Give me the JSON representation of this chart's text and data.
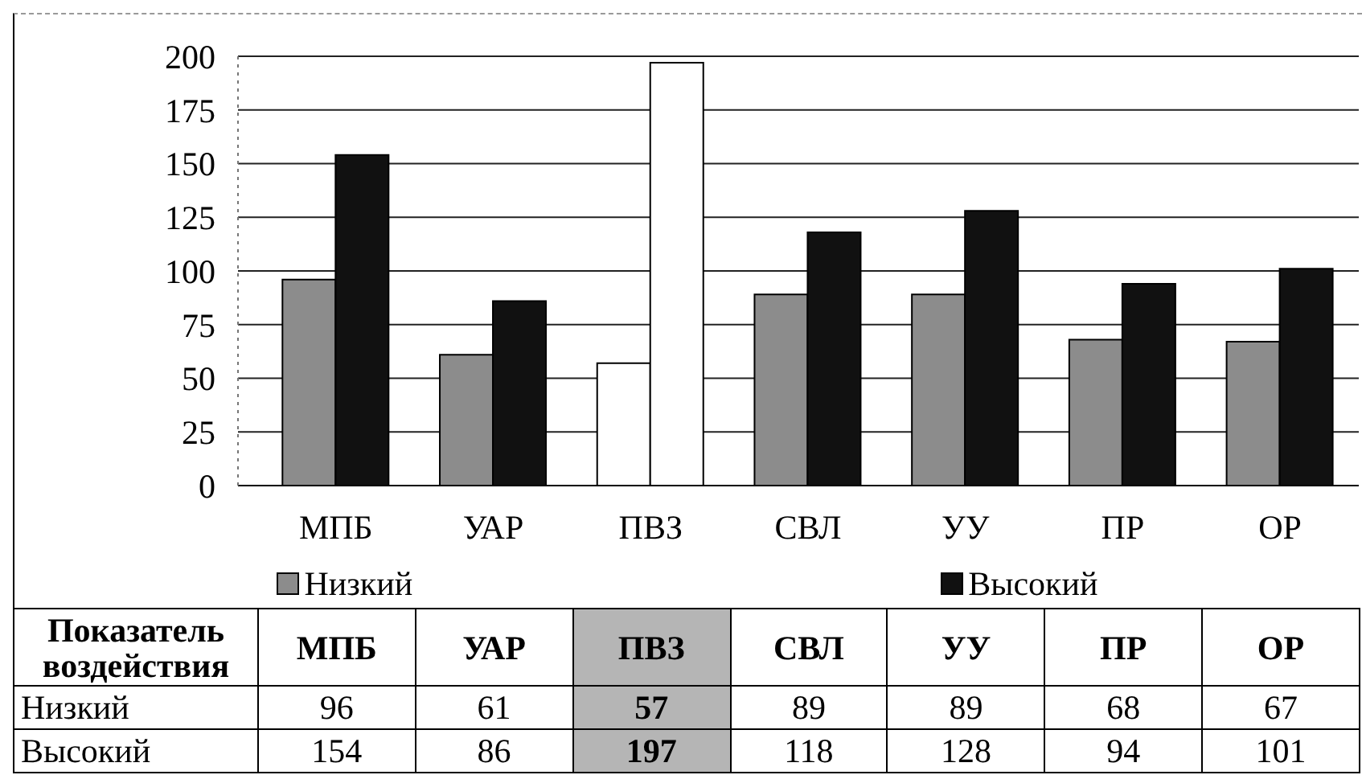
{
  "chart_data": {
    "type": "bar",
    "xlabel": "Показатель воздействия",
    "categories": [
      "МПБ",
      "УАР",
      "ПВЗ",
      "СВЛ",
      "УУ",
      "ПР",
      "ОР"
    ],
    "series": [
      {
        "name": "Низкий",
        "color": "#8c8c8c",
        "colors": [
          "#8c8c8c",
          "#8c8c8c",
          "#ffffff",
          "#8c8c8c",
          "#8c8c8c",
          "#8c8c8c",
          "#8c8c8c"
        ],
        "values": [
          96,
          61,
          57,
          89,
          89,
          68,
          67
        ]
      },
      {
        "name": "Высокий",
        "color": "#111111",
        "colors": [
          "#111111",
          "#111111",
          "#ffffff",
          "#111111",
          "#111111",
          "#111111",
          "#111111"
        ],
        "values": [
          154,
          86,
          197,
          118,
          128,
          94,
          101
        ]
      }
    ],
    "ylim": [
      0,
      200
    ],
    "yticks": [
      0,
      25,
      50,
      75,
      100,
      125,
      150,
      175,
      200
    ],
    "grid": "y",
    "legend": "bottom",
    "data_labels": true
  }
}
